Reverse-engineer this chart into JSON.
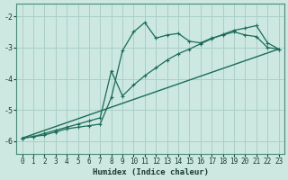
{
  "xlabel": "Humidex (Indice chaleur)",
  "background_color": "#cce8e0",
  "grid_color": "#aacfc8",
  "line_color": "#1a6b5a",
  "xlim": [
    -0.5,
    23.5
  ],
  "ylim": [
    -6.4,
    -1.6
  ],
  "yticks": [
    -6,
    -5,
    -4,
    -3,
    -2
  ],
  "xticks": [
    0,
    1,
    2,
    3,
    4,
    5,
    6,
    7,
    8,
    9,
    10,
    11,
    12,
    13,
    14,
    15,
    16,
    17,
    18,
    19,
    20,
    21,
    22,
    23
  ],
  "line1_x": [
    0,
    1,
    2,
    3,
    4,
    5,
    6,
    7,
    8,
    9,
    10,
    11,
    12,
    13,
    14,
    15,
    16,
    17,
    18,
    19,
    20,
    21,
    22,
    23
  ],
  "line1_y": [
    -5.9,
    -5.85,
    -5.8,
    -5.7,
    -5.6,
    -5.55,
    -5.5,
    -5.45,
    -4.6,
    -3.1,
    -2.5,
    -2.2,
    -2.7,
    -2.6,
    -2.55,
    -2.8,
    -2.85,
    -2.7,
    -2.6,
    -2.5,
    -2.6,
    -2.65,
    -3.0,
    -3.05
  ],
  "line2_x": [
    0,
    1,
    2,
    3,
    4,
    5,
    6,
    7,
    8,
    9,
    10,
    11,
    12,
    13,
    14,
    15,
    16,
    17,
    18,
    19,
    20,
    21,
    22,
    23
  ],
  "line2_y": [
    -5.9,
    -5.85,
    -5.75,
    -5.65,
    -5.55,
    -5.45,
    -5.35,
    -5.25,
    -3.75,
    -4.55,
    -4.2,
    -3.9,
    -3.65,
    -3.4,
    -3.2,
    -3.05,
    -2.88,
    -2.72,
    -2.58,
    -2.45,
    -2.38,
    -2.3,
    -2.85,
    -3.05
  ],
  "line3_x": [
    0,
    23
  ],
  "line3_y": [
    -5.9,
    -3.05
  ]
}
